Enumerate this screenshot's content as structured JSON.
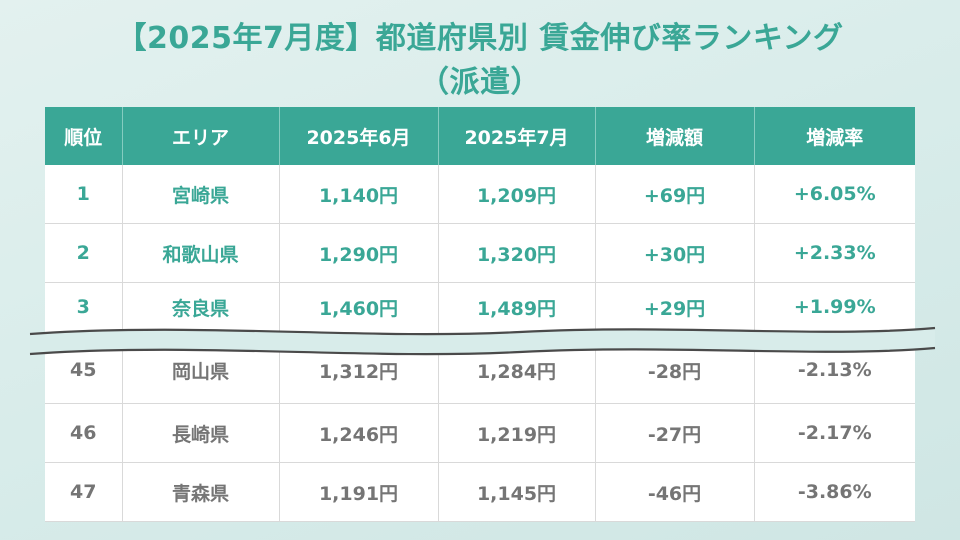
{
  "title": {
    "line1": "【2025年7月度】都道府県別 賃金伸び率ランキング",
    "line2": "（派遣）"
  },
  "colors": {
    "accent": "#3aa796",
    "bottom_text": "#757575",
    "background": "#d8ecea"
  },
  "chart_data": {
    "type": "table",
    "columns": [
      "順位",
      "エリア",
      "2025年6月",
      "2025年7月",
      "増減額",
      "増減率"
    ],
    "top_rows": [
      {
        "rank": "1",
        "area": "宮崎県",
        "jun": "1,140円",
        "jul": "1,209円",
        "diff": "+69円",
        "rate": "+6.05%"
      },
      {
        "rank": "2",
        "area": "和歌山県",
        "jun": "1,290円",
        "jul": "1,320円",
        "diff": "+30円",
        "rate": "+2.33%"
      },
      {
        "rank": "3",
        "area": "奈良県",
        "jun": "1,460円",
        "jul": "1,489円",
        "diff": "+29円",
        "rate": "+1.99%"
      }
    ],
    "bottom_rows": [
      {
        "rank": "45",
        "area": "岡山県",
        "jun": "1,312円",
        "jul": "1,284円",
        "diff": "-28円",
        "rate": "-2.13%"
      },
      {
        "rank": "46",
        "area": "長崎県",
        "jun": "1,246円",
        "jul": "1,219円",
        "diff": "-27円",
        "rate": "-2.17%"
      },
      {
        "rank": "47",
        "area": "青森県",
        "jun": "1,191円",
        "jul": "1,145円",
        "diff": "-46円",
        "rate": "-3.86%"
      }
    ]
  }
}
